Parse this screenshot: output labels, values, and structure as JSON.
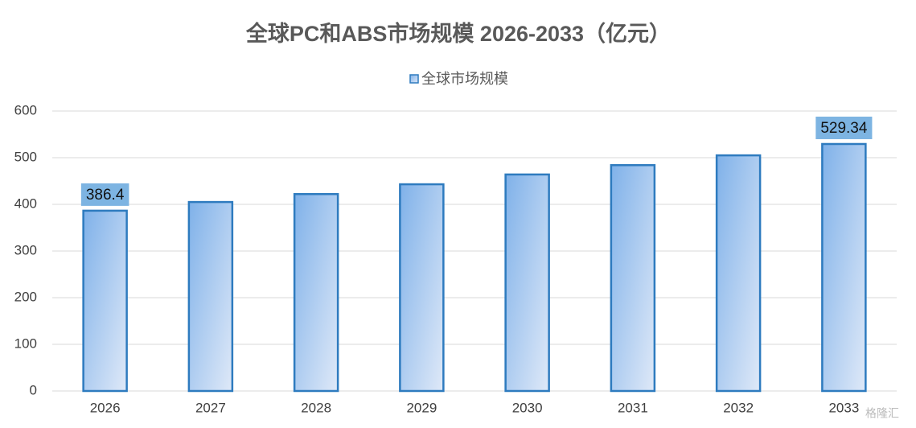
{
  "chart_data": {
    "type": "bar",
    "title": "全球PC和ABS市场规模 2026-2033（亿元）",
    "categories": [
      "2026",
      "2027",
      "2028",
      "2029",
      "2030",
      "2031",
      "2032",
      "2033"
    ],
    "series": [
      {
        "name": "全球市场规模",
        "color": "#2e7bbf",
        "values": [
          386.4,
          405,
          422,
          443,
          464,
          484,
          505,
          529.34
        ],
        "value_labels": [
          "386.4",
          null,
          null,
          null,
          null,
          null,
          null,
          "529.34"
        ]
      }
    ],
    "ylim": [
      0,
      600
    ],
    "yticks": [
      0,
      100,
      200,
      300,
      400,
      500,
      600
    ],
    "grid": true,
    "legend": "top",
    "watermark": "格隆汇"
  }
}
